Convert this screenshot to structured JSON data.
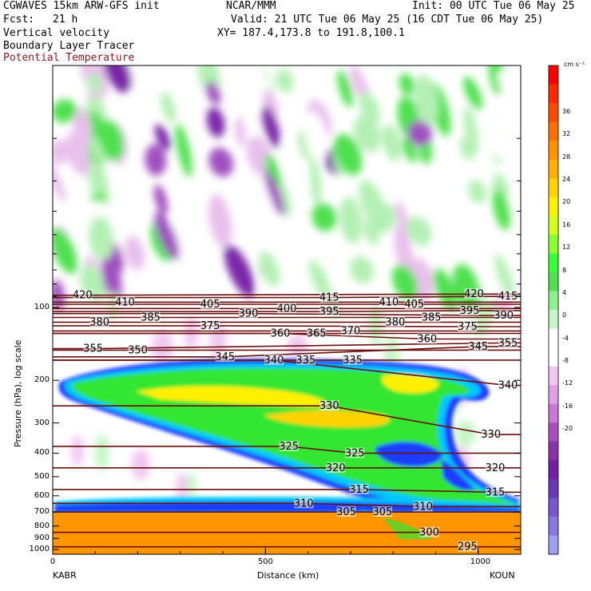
{
  "header": {
    "model": "CGWAVES 15km ARW-GFS init",
    "org": "NCAR/MMM",
    "init": "Init: 00 UTC Tue 06 May 25",
    "fcst_label": "Fcst:",
    "fcst_value": "21 h",
    "valid": "Valid: 21 UTC Tue 06 May 25 (16 CDT Tue 06 May 25)",
    "xy": "XY= 187.4,173.8 to 191.8,100.1",
    "field1": "Vertical velocity",
    "field2": "Boundary Layer Tracer",
    "field3": "Potential Temperature",
    "field3_color": "#8b1a1a"
  },
  "chart_data": {
    "type": "heatmap",
    "title": "Vertical velocity",
    "xlabel": "Distance (km)",
    "ylabel": "Pressure (hPa), log scale",
    "xlim": [
      0,
      1100
    ],
    "ylim": [
      1000,
      10
    ],
    "y_scale": "log",
    "x_ticks": [
      0,
      500,
      1000
    ],
    "y_ticks": [
      100,
      200,
      300,
      400,
      500,
      600,
      700,
      800,
      900,
      1000
    ],
    "endpoints": {
      "left": "KABR",
      "right": "KOUN"
    },
    "colorbar": {
      "units": "cm s⁻¹",
      "labels": [
        36,
        32,
        28,
        24,
        20,
        16,
        12,
        8,
        4,
        0,
        -4,
        -8,
        -12,
        -16,
        -20
      ],
      "colors": [
        "#ff0000",
        "#ff2a00",
        "#ff4d00",
        "#ff7000",
        "#ff9200",
        "#ffb000",
        "#ffd200",
        "#fff000",
        "#d0ff20",
        "#8cff30",
        "#3cff3c",
        "#52e052",
        "#8ef08e",
        "#c8f5c8",
        "#ffffff",
        "#ffffff",
        "#f0c8f0",
        "#e0a0e8",
        "#c878d8",
        "#a850c0",
        "#8a32a8",
        "#7020a0",
        "#6838b8",
        "#7858d0",
        "#8878e0",
        "#a0a0f0"
      ]
    },
    "theta_contours": [
      {
        "value": 295,
        "label_x": 975,
        "p": 975
      },
      {
        "value": 300,
        "label_x": 885,
        "p": 850
      },
      {
        "value": 305,
        "label_x": 690,
        "p": 700
      },
      {
        "value": 305,
        "label_x": 775,
        "p": 700
      },
      {
        "value": 310,
        "label_x": 590,
        "p": 645
      },
      {
        "value": 310,
        "label_x": 870,
        "p": 665
      },
      {
        "value": 315,
        "label_x": 720,
        "p": 565
      },
      {
        "value": 315,
        "label_x": 1040,
        "p": 580
      },
      {
        "value": 320,
        "label_x": 665,
        "p": 460
      },
      {
        "value": 320,
        "label_x": 1040,
        "p": 460
      },
      {
        "value": 325,
        "label_x": 555,
        "p": 375
      },
      {
        "value": 325,
        "label_x": 710,
        "p": 400
      },
      {
        "value": 330,
        "label_x": 650,
        "p": 255
      },
      {
        "value": 330,
        "label_x": 1030,
        "p": 335
      },
      {
        "value": 335,
        "label_x": 595,
        "p": 165
      },
      {
        "value": 335,
        "label_x": 705,
        "p": 165
      },
      {
        "value": 340,
        "label_x": 520,
        "p": 165
      },
      {
        "value": 340,
        "label_x": 1070,
        "p": 210
      },
      {
        "value": 345,
        "label_x": 405,
        "p": 160
      },
      {
        "value": 345,
        "label_x": 1000,
        "p": 145
      },
      {
        "value": 350,
        "label_x": 200,
        "p": 150
      },
      {
        "value": 355,
        "label_x": 95,
        "p": 148
      },
      {
        "value": 355,
        "label_x": 1070,
        "p": 140
      },
      {
        "value": 360,
        "label_x": 535,
        "p": 128
      },
      {
        "value": 360,
        "label_x": 880,
        "p": 135
      },
      {
        "value": 365,
        "label_x": 620,
        "p": 128
      },
      {
        "value": 370,
        "label_x": 700,
        "p": 125
      },
      {
        "value": 375,
        "label_x": 370,
        "p": 119
      },
      {
        "value": 375,
        "label_x": 975,
        "p": 120
      },
      {
        "value": 380,
        "label_x": 110,
        "p": 115
      },
      {
        "value": 380,
        "label_x": 805,
        "p": 115
      },
      {
        "value": 385,
        "label_x": 230,
        "p": 110
      },
      {
        "value": 385,
        "label_x": 890,
        "p": 110
      },
      {
        "value": 390,
        "label_x": 460,
        "p": 106
      },
      {
        "value": 390,
        "label_x": 1060,
        "p": 108
      },
      {
        "value": 395,
        "label_x": 650,
        "p": 104
      },
      {
        "value": 395,
        "label_x": 980,
        "p": 103
      },
      {
        "value": 400,
        "label_x": 550,
        "p": 101
      },
      {
        "value": 405,
        "label_x": 370,
        "p": 97
      },
      {
        "value": 405,
        "label_x": 850,
        "p": 97
      },
      {
        "value": 410,
        "label_x": 170,
        "p": 95
      },
      {
        "value": 410,
        "label_x": 790,
        "p": 95
      },
      {
        "value": 415,
        "label_x": 650,
        "p": 91
      },
      {
        "value": 415,
        "label_x": 1070,
        "p": 90
      },
      {
        "value": 420,
        "label_x": 70,
        "p": 89
      },
      {
        "value": 420,
        "label_x": 990,
        "p": 88
      }
    ]
  }
}
